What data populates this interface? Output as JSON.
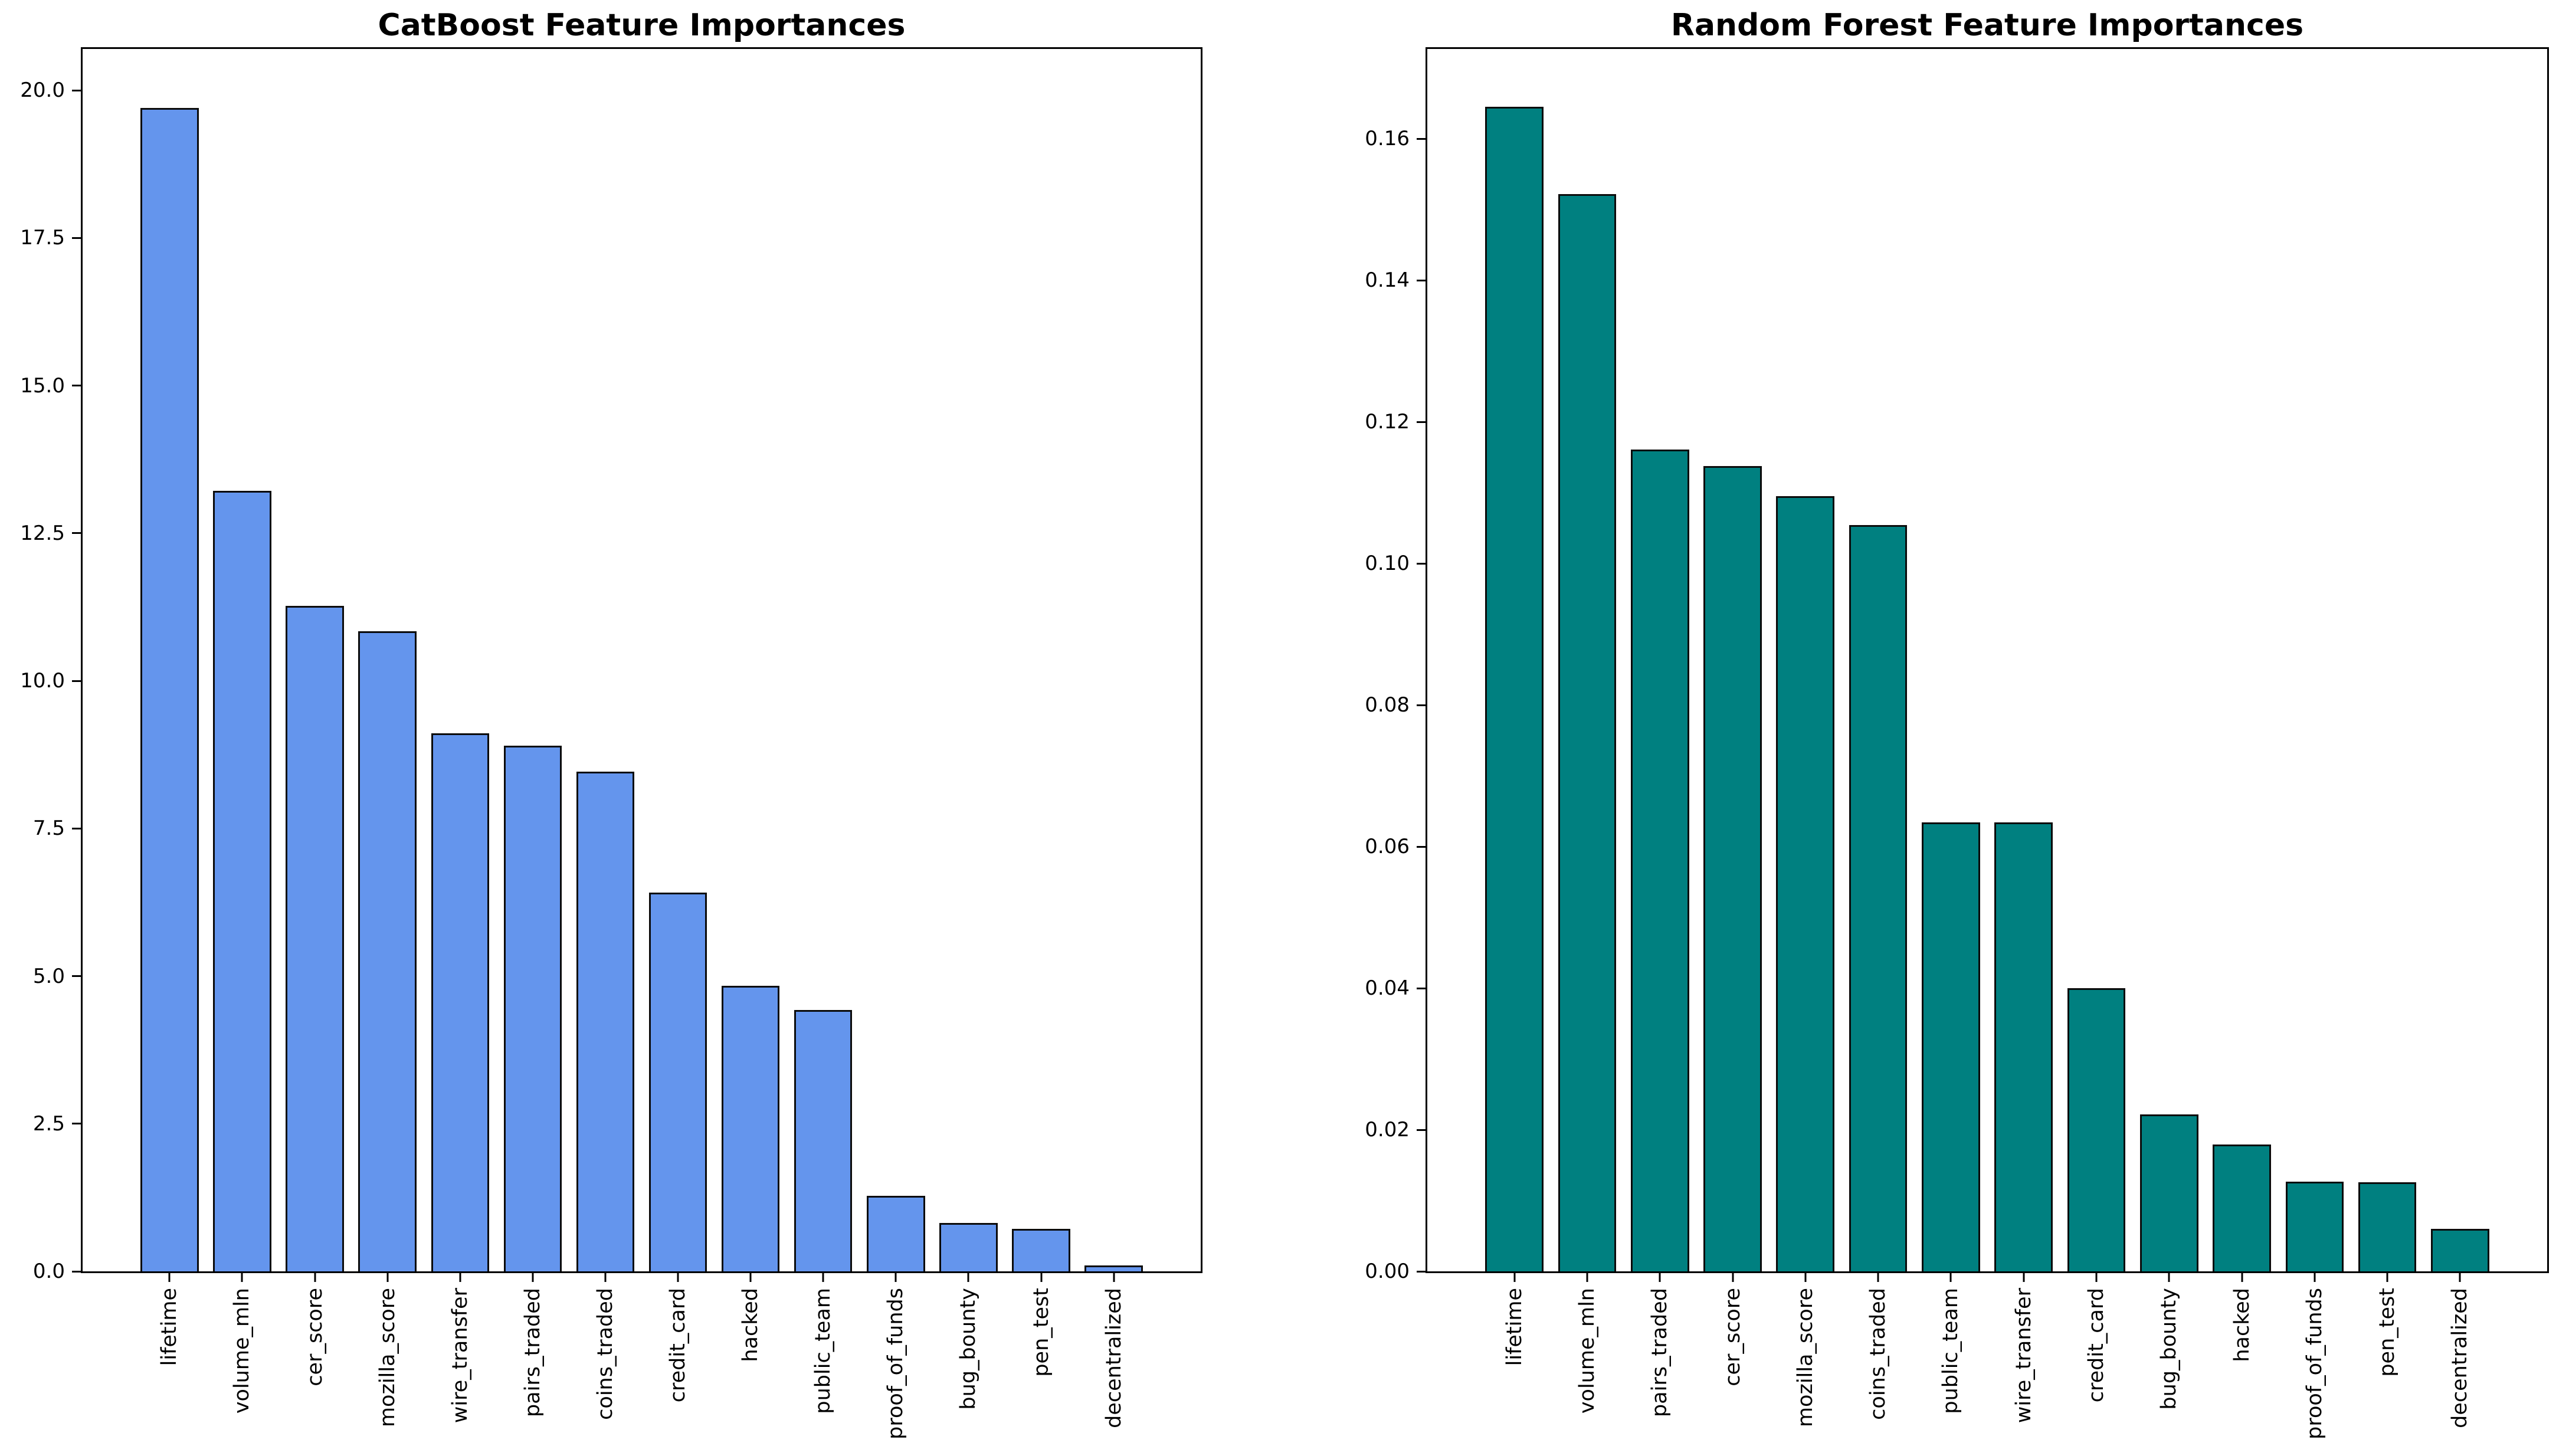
{
  "figure": {
    "background": "#ffffff",
    "axis_color": "#000000",
    "tick_label_rotation_deg": 90
  },
  "chart_data": [
    {
      "type": "bar",
      "title": "CatBoost Feature Importances",
      "categories": [
        "lifetime",
        "volume_mln",
        "cer_score",
        "mozilla_score",
        "wire_transfer",
        "pairs_traded",
        "coins_traded",
        "credit_card",
        "hacked",
        "public_team",
        "proof_of_funds",
        "bug_bounty",
        "pen_test",
        "decentralized"
      ],
      "values": [
        19.7,
        13.22,
        11.27,
        10.84,
        9.11,
        8.9,
        8.46,
        6.41,
        4.84,
        4.43,
        1.28,
        0.82,
        0.72,
        0.1
      ],
      "xlabel": "",
      "ylabel": "",
      "ylim": [
        0,
        20.7
      ],
      "ytick_values": [
        0,
        2.5,
        5,
        7.5,
        10,
        12.5,
        15,
        17.5,
        20
      ],
      "ytick_labels": [
        "0.0",
        "2.5",
        "5.0",
        "7.5",
        "10.0",
        "12.5",
        "15.0",
        "17.5",
        "20.0"
      ],
      "bar_color": "#6495ed",
      "edge_color": "#0b0b0b",
      "grid": false,
      "legend": null
    },
    {
      "type": "bar",
      "title": "Random Forest Feature Importances",
      "categories": [
        "lifetime",
        "volume_mln",
        "pairs_traded",
        "cer_score",
        "mozilla_score",
        "coins_traded",
        "public_team",
        "wire_transfer",
        "credit_card",
        "bug_bounty",
        "hacked",
        "proof_of_funds",
        "pen_test",
        "decentralized"
      ],
      "values": [
        0.1645,
        0.1522,
        0.1161,
        0.1138,
        0.1095,
        0.1054,
        0.0634,
        0.0634,
        0.04,
        0.0222,
        0.0179,
        0.0127,
        0.0126,
        0.006
      ],
      "xlabel": "",
      "ylabel": "",
      "ylim": [
        0,
        0.1727
      ],
      "ytick_values": [
        0,
        0.02,
        0.04,
        0.06,
        0.08,
        0.1,
        0.12,
        0.14,
        0.16
      ],
      "ytick_labels": [
        "0.00",
        "0.02",
        "0.04",
        "0.06",
        "0.08",
        "0.10",
        "0.12",
        "0.14",
        "0.16"
      ],
      "bar_color": "#008080",
      "edge_color": "#0b0b0b",
      "grid": false,
      "legend": null
    }
  ]
}
